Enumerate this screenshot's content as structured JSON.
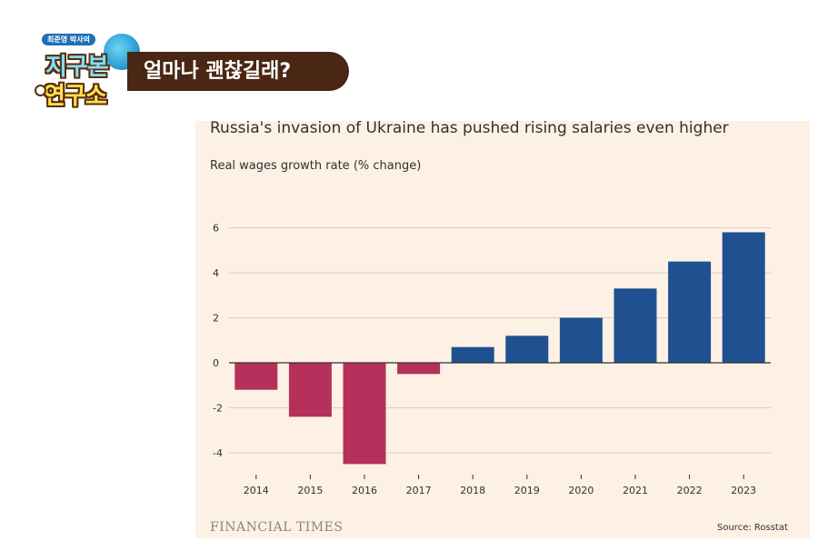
{
  "logo": {
    "tag": "최준영 박사의",
    "line1": "지구본",
    "line2": "연구소"
  },
  "banner": {
    "text": "얼마나 괜찮길래?"
  },
  "chart_data": {
    "type": "bar",
    "title": "Russia's invasion of Ukraine has pushed rising salaries even higher",
    "subtitle": "Real wages growth rate (% change)",
    "categories": [
      "2014",
      "2015",
      "2016",
      "2017",
      "2018",
      "2019",
      "2020",
      "2021",
      "2022",
      "2023"
    ],
    "values": [
      -1.2,
      -2.4,
      -4.5,
      -0.5,
      0.7,
      1.2,
      2.0,
      3.3,
      4.5,
      5.8
    ],
    "ylim": [
      -5,
      6.5
    ],
    "yticks": [
      6,
      4,
      2,
      0,
      -2,
      -4
    ],
    "grid": true,
    "colors": {
      "positive": "#1f5190",
      "negative": "#b5305a",
      "grid": "#d9cfc4",
      "axis": "#33302e"
    }
  },
  "footer": {
    "brand": "FINANCIAL TIMES",
    "source": "Source: Rosstat"
  }
}
